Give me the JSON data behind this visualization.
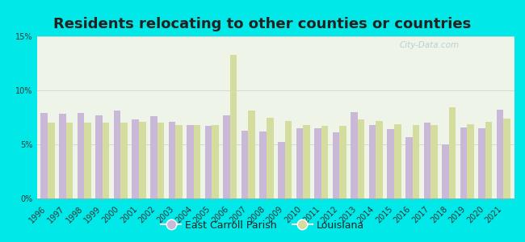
{
  "title": "Residents relocating to other counties or countries",
  "years": [
    1996,
    1997,
    1998,
    1999,
    2000,
    2001,
    2002,
    2003,
    2004,
    2005,
    2006,
    2007,
    2008,
    2009,
    2010,
    2011,
    2012,
    2013,
    2014,
    2015,
    2016,
    2017,
    2018,
    2019,
    2020,
    2021
  ],
  "east_carroll": [
    7.9,
    7.8,
    7.9,
    7.7,
    8.1,
    7.3,
    7.6,
    7.1,
    6.8,
    6.7,
    7.7,
    6.3,
    6.2,
    5.2,
    6.5,
    6.5,
    6.1,
    8.0,
    6.8,
    6.4,
    5.7,
    7.0,
    5.0,
    6.6,
    6.5,
    8.2
  ],
  "louisiana": [
    7.0,
    7.0,
    7.0,
    7.0,
    7.0,
    7.1,
    7.0,
    6.8,
    6.8,
    6.8,
    13.3,
    8.1,
    7.5,
    7.2,
    6.8,
    6.7,
    6.7,
    7.3,
    7.2,
    6.9,
    6.8,
    6.8,
    8.4,
    6.9,
    7.1,
    7.4
  ],
  "east_carroll_color": "#c9b8d8",
  "louisiana_color": "#d4dd9e",
  "background_outer": "#00e8e8",
  "background_inner": "#eef5e8",
  "ylim": [
    0,
    15
  ],
  "yticks": [
    0,
    5,
    10,
    15
  ],
  "ytick_labels": [
    "0%",
    "5%",
    "10%",
    "15%"
  ],
  "legend_east_carroll": "East Carroll Parish",
  "legend_louisiana": "Louisiana",
  "bar_width": 0.38,
  "title_fontsize": 13,
  "tick_fontsize": 7,
  "legend_fontsize": 9
}
